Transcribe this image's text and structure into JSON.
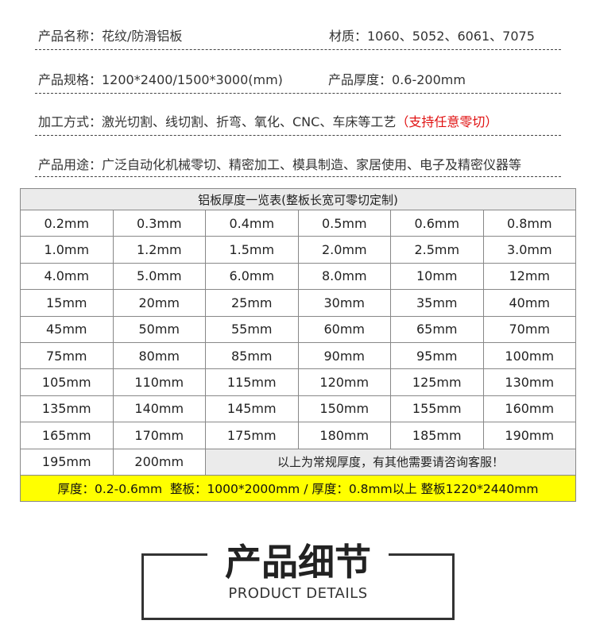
{
  "info": {
    "name": "产品名称：花纹/防滑铝板",
    "material": "材质：1060、5052、6061、7075",
    "spec": "产品规格：1200*2400/1500*3000(mm)",
    "thickness": "产品厚度：0.6-200mm",
    "process": "加工方式：激光切割、线切割、折弯、氧化、CNC、车床等工艺",
    "process_note": "（支持任意零切）",
    "usage": "产品用途：广泛自动化机械零切、精密加工、模具制造、家居使用、电子及精密仪器等"
  },
  "table": {
    "title": "铝板厚度一览表(整板长宽可零切定制)",
    "rows": [
      [
        "0.2mm",
        "0.3mm",
        "0.4mm",
        "0.5mm",
        "0.6mm",
        "0.8mm"
      ],
      [
        "1.0mm",
        "1.2mm",
        "1.5mm",
        "2.0mm",
        "2.5mm",
        "3.0mm"
      ],
      [
        "4.0mm",
        "5.0mm",
        "6.0mm",
        "8.0mm",
        "10mm",
        "12mm"
      ],
      [
        "15mm",
        "20mm",
        "25mm",
        "30mm",
        "35mm",
        "40mm"
      ],
      [
        "45mm",
        "50mm",
        "55mm",
        "60mm",
        "65mm",
        "70mm"
      ],
      [
        "75mm",
        "80mm",
        "85mm",
        "90mm",
        "95mm",
        "100mm"
      ],
      [
        "105mm",
        "110mm",
        "115mm",
        "120mm",
        "125mm",
        "130mm"
      ],
      [
        "135mm",
        "140mm",
        "145mm",
        "150mm",
        "155mm",
        "160mm"
      ],
      [
        "165mm",
        "170mm",
        "175mm",
        "180mm",
        "185mm",
        "190mm"
      ],
      [
        "195mm",
        "200mm"
      ]
    ],
    "note": "以上为常规厚度，有其他需要请咨询客服！",
    "footer": "厚度：0.2-0.6mm  整板：1000*2000mm / 厚度：0.8mm以上 整板1220*2440mm"
  },
  "section": {
    "title": "产品细节",
    "subtitle": "PRODUCT DETAILS"
  }
}
